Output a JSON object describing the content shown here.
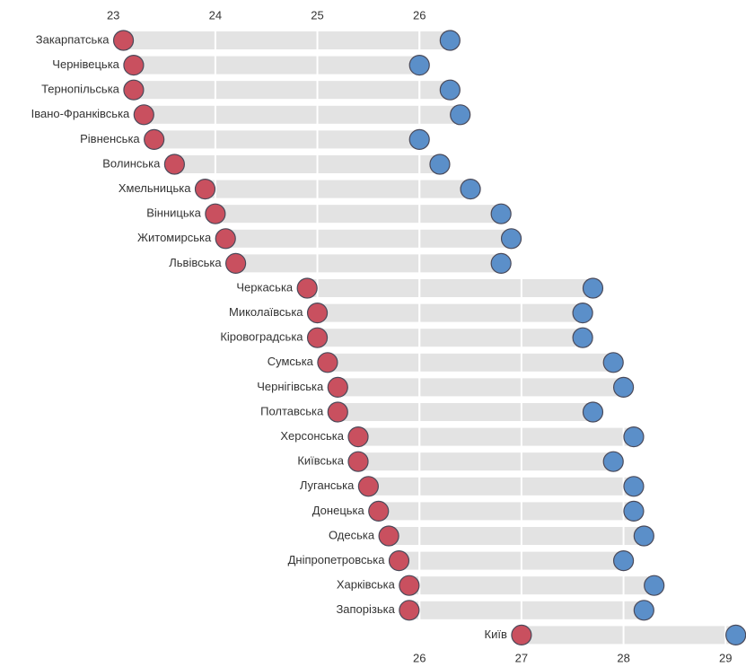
{
  "chart_data": {
    "type": "dumbbell",
    "categories": [
      "Закарпатська",
      "Чернівецька",
      "Тернопільська",
      "Івано-Франківська",
      "Рівненська",
      "Волинська",
      "Хмельницька",
      "Вінницька",
      "Житомирська",
      "Львівська",
      "Черкаська",
      "Миколаївська",
      "Кіровоградська",
      "Сумська",
      "Чернігівська",
      "Полтавська",
      "Херсонська",
      "Київська",
      "Луганська",
      "Донецька",
      "Одеська",
      "Дніпропетровська",
      "Харківська",
      "Запорізька",
      "Київ"
    ],
    "series": [
      {
        "color": "#c9505f",
        "values": [
          23.1,
          23.2,
          23.2,
          23.3,
          23.4,
          23.6,
          23.9,
          24.0,
          24.1,
          24.2,
          24.9,
          25.0,
          25.0,
          25.1,
          25.2,
          25.2,
          25.4,
          25.4,
          25.5,
          25.6,
          25.7,
          25.8,
          25.9,
          25.9,
          27.0
        ]
      },
      {
        "color": "#5b8fc9",
        "values": [
          26.3,
          26.0,
          26.3,
          26.4,
          26.0,
          26.2,
          26.5,
          26.8,
          26.9,
          26.8,
          27.7,
          27.6,
          27.6,
          27.9,
          28.0,
          27.7,
          28.1,
          27.9,
          28.1,
          28.1,
          28.2,
          28.0,
          28.3,
          28.2,
          29.1
        ]
      }
    ],
    "xlim": [
      21.89,
      29.2
    ],
    "xticks_top": [
      23,
      24,
      25,
      26
    ],
    "xticks_bottom": [
      26,
      27,
      28,
      29
    ],
    "bar_color": "#e3e3e3",
    "grid": true
  }
}
